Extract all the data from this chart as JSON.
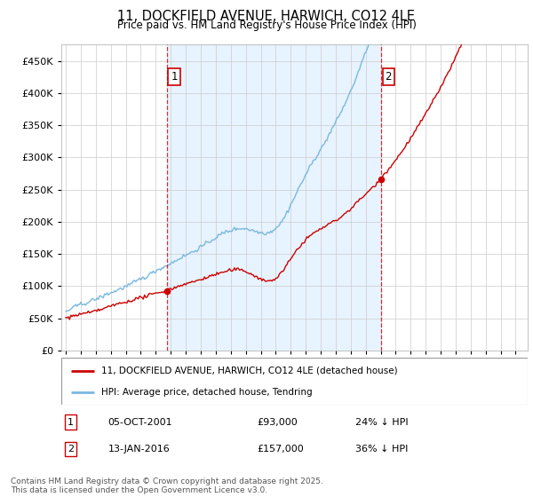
{
  "title": "11, DOCKFIELD AVENUE, HARWICH, CO12 4LE",
  "subtitle": "Price paid vs. HM Land Registry's House Price Index (HPI)",
  "legend_line1": "11, DOCKFIELD AVENUE, HARWICH, CO12 4LE (detached house)",
  "legend_line2": "HPI: Average price, detached house, Tendring",
  "annotation1_date": "05-OCT-2001",
  "annotation1_price": "£93,000",
  "annotation1_hpi": "24% ↓ HPI",
  "annotation2_date": "13-JAN-2016",
  "annotation2_price": "£157,000",
  "annotation2_hpi": "36% ↓ HPI",
  "footnote": "Contains HM Land Registry data © Crown copyright and database right 2025.\nThis data is licensed under the Open Government Licence v3.0.",
  "hpi_color": "#7ab8e0",
  "price_color": "#cc0000",
  "vline_color": "#cc0000",
  "annotation_box_color": "#cc0000",
  "shade_color": "#ddeeff",
  "ylim": [
    0,
    475000
  ],
  "yticks": [
    0,
    50000,
    100000,
    150000,
    200000,
    250000,
    300000,
    350000,
    400000,
    450000
  ],
  "sale1_year": 2001.75,
  "sale1_price": 93000,
  "sale2_year": 2016.04,
  "sale2_price": 157000
}
